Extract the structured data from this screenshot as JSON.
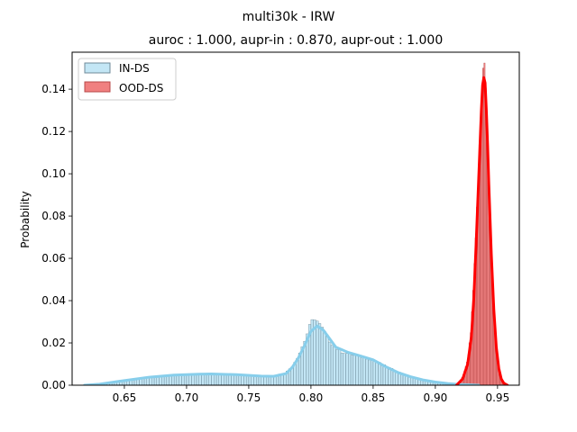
{
  "chart_data": {
    "type": "histogram",
    "suptitle": "multi30k - IRW",
    "title": "auroc : 1.000, aupr-in : 0.870, aupr-out : 1.000",
    "xlabel": "",
    "ylabel": "Probability",
    "xlim": [
      0.608,
      0.9675
    ],
    "ylim": [
      0,
      0.1575
    ],
    "xticks": [
      0.65,
      0.7,
      0.75,
      0.8,
      0.85,
      0.9,
      0.95
    ],
    "xtick_labels": [
      "0.65",
      "0.70",
      "0.75",
      "0.80",
      "0.85",
      "0.90",
      "0.95"
    ],
    "yticks": [
      0.0,
      0.02,
      0.04,
      0.06,
      0.08,
      0.1,
      0.12,
      0.14
    ],
    "ytick_labels": [
      "0.00",
      "0.02",
      "0.04",
      "0.06",
      "0.08",
      "0.10",
      "0.12",
      "0.14"
    ],
    "grid": false,
    "legend_position": "top-left",
    "series": [
      {
        "name": "IN-DS",
        "fill_color": "#87CEEB",
        "edge_color": "#6f8a98",
        "kde_color": "#87CEEB",
        "bin_width": 0.002,
        "kde_x": [
          0.618,
          0.63,
          0.65,
          0.67,
          0.69,
          0.71,
          0.72,
          0.74,
          0.76,
          0.77,
          0.78,
          0.785,
          0.79,
          0.795,
          0.8,
          0.805,
          0.81,
          0.815,
          0.82,
          0.83,
          0.84,
          0.85,
          0.86,
          0.87,
          0.88,
          0.89,
          0.9,
          0.91,
          0.92,
          0.93,
          0.935
        ],
        "kde_y": [
          0.0,
          0.0005,
          0.0022,
          0.0038,
          0.0048,
          0.0052,
          0.0053,
          0.005,
          0.0043,
          0.0042,
          0.0055,
          0.0085,
          0.013,
          0.019,
          0.0255,
          0.028,
          0.026,
          0.022,
          0.018,
          0.0155,
          0.0138,
          0.012,
          0.0088,
          0.006,
          0.004,
          0.0025,
          0.0015,
          0.0008,
          0.0003,
          0.0001,
          0.0
        ],
        "hist_points_x": [
          0.62,
          0.63,
          0.64,
          0.65,
          0.66,
          0.67,
          0.68,
          0.69,
          0.7,
          0.71,
          0.72,
          0.73,
          0.74,
          0.75,
          0.76,
          0.77,
          0.78,
          0.785,
          0.79,
          0.795,
          0.8,
          0.803,
          0.806,
          0.81,
          0.815,
          0.82,
          0.825,
          0.83,
          0.835,
          0.84,
          0.845,
          0.85,
          0.855,
          0.86,
          0.87,
          0.88,
          0.89,
          0.9,
          0.91,
          0.92,
          0.93,
          0.94
        ],
        "hist_points_y": [
          0.0003,
          0.0008,
          0.0016,
          0.0025,
          0.0032,
          0.0038,
          0.0043,
          0.0048,
          0.005,
          0.0052,
          0.0052,
          0.005,
          0.0048,
          0.0046,
          0.0043,
          0.0044,
          0.006,
          0.009,
          0.014,
          0.021,
          0.0295,
          0.0318,
          0.0295,
          0.026,
          0.021,
          0.0175,
          0.0158,
          0.0148,
          0.014,
          0.0135,
          0.0128,
          0.0118,
          0.0105,
          0.009,
          0.0063,
          0.0042,
          0.0027,
          0.0015,
          0.0008,
          0.0003,
          0.0001,
          0.0
        ]
      },
      {
        "name": "OOD-DS",
        "fill_color": "#F08080",
        "edge_color": "#b84848",
        "kde_color": "#FF0000",
        "bin_width": 0.001,
        "kde_x": [
          0.917,
          0.922,
          0.926,
          0.929,
          0.931,
          0.933,
          0.935,
          0.937,
          0.938,
          0.939,
          0.94,
          0.941,
          0.942,
          0.943,
          0.945,
          0.947,
          0.949,
          0.951,
          0.953,
          0.955,
          0.958
        ],
        "kde_y": [
          0.0,
          0.003,
          0.01,
          0.023,
          0.042,
          0.07,
          0.1,
          0.13,
          0.142,
          0.1455,
          0.143,
          0.13,
          0.114,
          0.095,
          0.062,
          0.036,
          0.018,
          0.008,
          0.003,
          0.001,
          0.0
        ],
        "hist_points_x": [
          0.918,
          0.922,
          0.926,
          0.929,
          0.931,
          0.933,
          0.935,
          0.937,
          0.938,
          0.939,
          0.94,
          0.941,
          0.942,
          0.943,
          0.945,
          0.947,
          0.949,
          0.951,
          0.953,
          0.956
        ],
        "hist_points_y": [
          0.0004,
          0.004,
          0.012,
          0.028,
          0.052,
          0.078,
          0.106,
          0.13,
          0.142,
          0.152,
          0.147,
          0.128,
          0.11,
          0.092,
          0.06,
          0.034,
          0.017,
          0.007,
          0.0025,
          0.0005
        ]
      }
    ]
  }
}
